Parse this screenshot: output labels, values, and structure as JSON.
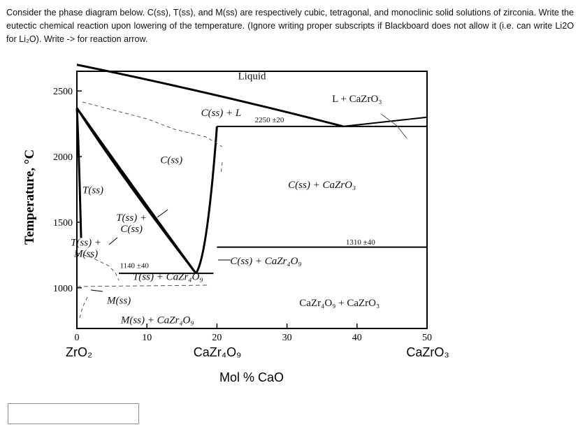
{
  "question": {
    "text": "Consider the phase diagram below. C(ss), T(ss), and M(ss) are respectively cubic, tetragonal, and monoclinic solid solutions of zirconia. Write the eutectic chemical reaction upon lowering of the temperature. (Ignore writing proper subscripts if Blackboard does not allow it (i.e. can write Li2O for Li₂O). Write -> for reaction arrow."
  },
  "answer_input": {
    "value": "",
    "placeholder": ""
  },
  "chart_data": {
    "type": "line",
    "ylabel": "Temperature, °C",
    "xlabel": "Mol % CaO",
    "xlim": [
      0,
      50
    ],
    "ylim": [
      690,
      2650
    ],
    "x_ticks": [
      0,
      10,
      20,
      30,
      40,
      50
    ],
    "x_tick_labels": [
      "0",
      "10",
      "20",
      "30",
      "40",
      "50"
    ],
    "y_ticks": [
      1000,
      1500,
      2000,
      2500
    ],
    "y_tick_labels": [
      "1000",
      "1500",
      "2000",
      "2500"
    ],
    "x_end_labels": [
      "ZrO₂",
      "CaZr₄O₉",
      "CaZrO₃"
    ],
    "series": [
      {
        "values": [
          [
            0,
            2700
          ],
          [
            20,
            2480
          ],
          [
            38,
            2230
          ]
        ]
      },
      {
        "values": [
          [
            0,
            2370
          ],
          [
            10,
            1620
          ],
          [
            17,
            1110
          ]
        ]
      },
      {
        "values": [
          [
            0,
            2370
          ],
          [
            6,
            1870
          ],
          [
            17,
            1110
          ]
        ]
      },
      {
        "values": [
          [
            0,
            2370
          ],
          [
            0.3,
            2030
          ],
          [
            0.6,
            1380
          ]
        ]
      },
      {
        "values": [
          [
            17,
            1110
          ],
          [
            18.6,
            1230
          ],
          [
            20,
            2230
          ]
        ]
      },
      {
        "values": [
          [
            38,
            2230
          ],
          [
            50,
            2300
          ]
        ]
      },
      {
        "values": [
          [
            20,
            2230
          ],
          [
            50,
            2230
          ]
        ]
      },
      {
        "values": [
          [
            20,
            1310
          ],
          [
            50,
            1310
          ]
        ]
      },
      {
        "values": [
          [
            6,
            1110
          ],
          [
            19.5,
            1110
          ]
        ]
      }
    ],
    "annotations": [
      {
        "text": "Liquid",
        "x": 25,
        "y": 2590
      },
      {
        "text": "L + CaZrO₃",
        "x": 40,
        "y": 2415
      },
      {
        "text": "C(ss) + L",
        "x": 20.6,
        "y": 2310
      },
      {
        "text": "2250 ±20",
        "x": 27.5,
        "y": 2260
      },
      {
        "text": "C(ss)",
        "x": 13.5,
        "y": 1950
      },
      {
        "text": "C(ss) + CaZrO₃",
        "x": 35,
        "y": 1760
      },
      {
        "text": "T(ss)",
        "x": 2.3,
        "y": 1720
      },
      {
        "text": "T(ss) +\nC(ss)",
        "x": 7.8,
        "y": 1510
      },
      {
        "text": "1310 ±40",
        "x": 40.5,
        "y": 1330
      },
      {
        "text": "T(ss) +\nM(ss)",
        "x": 1.3,
        "y": 1320
      },
      {
        "text": "C(ss) + CaZr₄O₉",
        "x": 27,
        "y": 1180
      },
      {
        "text": "1140 ±40",
        "x": 8.2,
        "y": 1150
      },
      {
        "text": "T(ss) + CaZr₄O₉",
        "x": 13,
        "y": 1060
      },
      {
        "text": "M(ss)",
        "x": 6,
        "y": 880
      },
      {
        "text": "CaZr₄O₉ + CaZrO₃",
        "x": 37.5,
        "y": 860
      },
      {
        "text": "M(ss) + CaZr₄O₉",
        "x": 11.5,
        "y": 730
      }
    ],
    "grid": false,
    "legend": "none",
    "colors": {
      "line": "#000000",
      "dashed": "#555555",
      "text": "#111111"
    }
  }
}
